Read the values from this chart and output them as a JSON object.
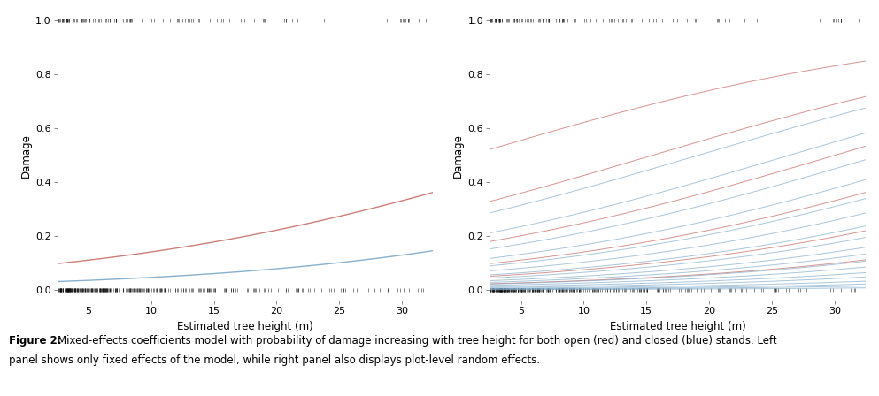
{
  "xlim": [
    2.5,
    32.5
  ],
  "ylim": [
    -0.04,
    1.04
  ],
  "yticks": [
    0.0,
    0.2,
    0.4,
    0.6,
    0.8,
    1.0
  ],
  "xticks": [
    5,
    10,
    15,
    20,
    25,
    30
  ],
  "xlabel": "Estimated tree height (m)",
  "ylabel": "Damage",
  "red_color": "#c8706a",
  "blue_color": "#7ba7c8",
  "fixed_red_intercept": -2.35,
  "fixed_red_slope": 0.055,
  "fixed_blue_intercept": -3.55,
  "fixed_blue_slope": 0.055,
  "caption_bold": "Figure 2: ",
  "caption_regular": "Mixed-effects coefficients model with probability of damage increasing with tree height for both open (red) and closed (blue) stands. Left\npanel shows only fixed effects of the model, while right panel also displays plot-level random effects.",
  "caption_fontsize": 8.5,
  "red_re_intercepts": [
    -1.5,
    -0.7,
    0.0,
    0.7,
    1.5,
    2.3
  ],
  "blue_re_intercepts": [
    -3.0,
    -2.4,
    -2.0,
    -1.6,
    -1.2,
    -0.9,
    -0.6,
    -0.35,
    -0.1,
    0.1,
    0.35,
    0.6,
    0.85,
    1.1,
    1.4,
    1.7,
    2.1,
    2.5
  ]
}
